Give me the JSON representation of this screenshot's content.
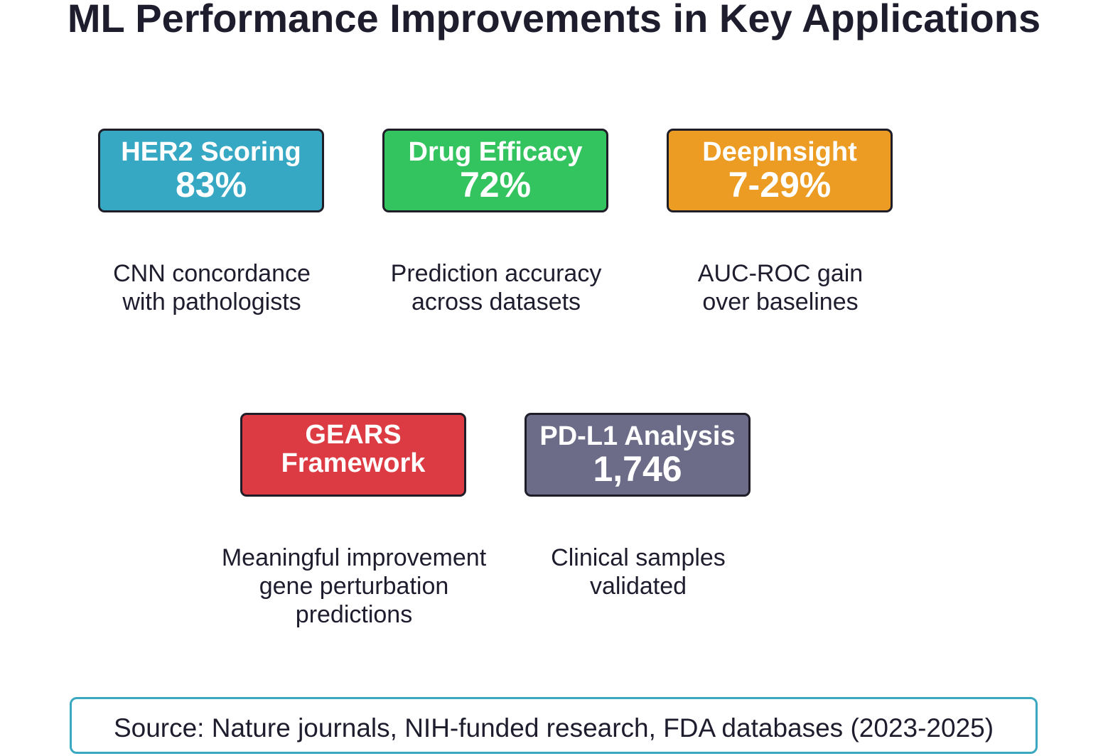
{
  "title": "ML Performance Improvements in Key Applications",
  "colors": {
    "her2": "#37a8c3",
    "drug_efficacy": "#34c45f",
    "deepinsight": "#ec9c22",
    "gears": "#dd3b43",
    "pdl1": "#6c6c88",
    "source_border": "#3aa8c1"
  },
  "cards": [
    {
      "name": "HER2 Scoring",
      "value": "83%",
      "description": "CNN concordance\nwith pathologists"
    },
    {
      "name": "Drug Efficacy",
      "value": "72%",
      "description": "Prediction accuracy\nacross datasets"
    },
    {
      "name": "DeepInsight",
      "value": "7-29%",
      "description": "AUC-ROC gain\nover baselines"
    },
    {
      "name": "GEARS\nFramework",
      "value": "",
      "description": "Meaningful improvement\ngene perturbation\npredictions"
    },
    {
      "name": "PD-L1 Analysis",
      "value": "1,746",
      "description": "Clinical samples\nvalidated"
    }
  ],
  "source": "Source: Nature journals, NIH-funded research, FDA databases (2023-2025)"
}
